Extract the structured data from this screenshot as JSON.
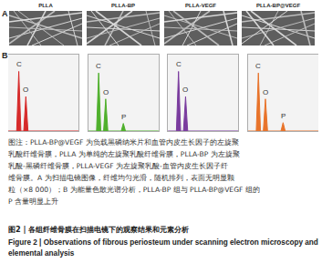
{
  "panel_a": {
    "label": "A",
    "images": [
      "PLLA",
      "PLLA-BP",
      "PLLA-VEGF",
      "PLLA-BP@VEGF"
    ]
  },
  "panel_b": {
    "label": "B"
  },
  "chart_data": [
    {
      "type": "line",
      "x": [
        0,
        1.2,
        1.5,
        1.8,
        2.2,
        2.5,
        2.8,
        4.7,
        5,
        5.3,
        10
      ],
      "series": [
        {
          "color": "#d62a2a",
          "values": [
            0,
            0,
            78,
            0,
            0,
            45,
            0,
            0,
            0,
            0,
            0
          ]
        }
      ],
      "xlim": [
        0,
        10
      ],
      "ylim": [
        0,
        100
      ],
      "tick_labels": false,
      "annotations": [
        {
          "text": "C",
          "x": 1.5,
          "y": 78
        },
        {
          "text": "O",
          "x": 2.5,
          "y": 45
        }
      ]
    },
    {
      "type": "line",
      "x": [
        0,
        1.2,
        1.5,
        1.8,
        2.2,
        2.5,
        2.8,
        4.7,
        5,
        5.3,
        10
      ],
      "series": [
        {
          "color": "#4fb02c",
          "values": [
            0,
            0,
            76,
            0,
            0,
            42,
            0,
            0,
            10,
            0,
            0
          ]
        }
      ],
      "xlim": [
        0,
        10
      ],
      "ylim": [
        0,
        100
      ],
      "tick_labels": false,
      "annotations": [
        {
          "text": "C",
          "x": 1.5,
          "y": 76
        },
        {
          "text": "O",
          "x": 2.5,
          "y": 42
        },
        {
          "text": "P",
          "x": 5,
          "y": 10
        }
      ]
    },
    {
      "type": "line",
      "x": [
        0,
        1.2,
        1.5,
        1.8,
        2.2,
        2.5,
        2.8,
        4.7,
        5,
        5.3,
        10
      ],
      "series": [
        {
          "color": "#7a3c9e",
          "values": [
            0,
            0,
            78,
            0,
            0,
            45,
            0,
            0,
            0,
            0,
            0
          ]
        }
      ],
      "xlim": [
        0,
        10
      ],
      "ylim": [
        0,
        100
      ],
      "tick_labels": false,
      "annotations": [
        {
          "text": "C",
          "x": 1.5,
          "y": 78
        },
        {
          "text": "O",
          "x": 2.5,
          "y": 45
        }
      ]
    },
    {
      "type": "line",
      "x": [
        0,
        1.2,
        1.5,
        1.8,
        2.2,
        2.5,
        2.8,
        4.7,
        5,
        5.3,
        10
      ],
      "series": [
        {
          "color": "#e8732a",
          "values": [
            0,
            0,
            76,
            0,
            0,
            42,
            0,
            0,
            11,
            0,
            0
          ]
        }
      ],
      "xlim": [
        0,
        10
      ],
      "ylim": [
        0,
        100
      ],
      "tick_labels": false,
      "annotations": [
        {
          "text": "C",
          "x": 1.5,
          "y": 76
        },
        {
          "text": "O",
          "x": 2.5,
          "y": 42
        },
        {
          "text": "P",
          "x": 5,
          "y": 11
        }
      ]
    }
  ],
  "caption_lines": [
    "图注：PLLA-BP@VEGF 为负载黑磷纳米片和血管内皮生长因子的左旋聚",
    "乳酸纤维骨膜，PLLA 为单纯的左旋聚乳酸纤维骨膜，PLLA-BP 为左旋聚",
    "乳酸-黑磷纤维骨膜，PLLA-VEGF 为左旋聚乳酸-血管内皮生长因子纤",
    "维骨膜。A 为扫描电镜图像，纤维均匀光滑，随机排列，表面无明显颗",
    "粒（×8 000）；B 为能量色散光谱分析，PLLA-BP 组与 PLLA-BP@VEGF 组的",
    "P 含量明显上升"
  ],
  "title_zh": "图2 | 各组纤维骨膜在扫描电镜下的观察结果和元素分析",
  "title_en": "Figure 2 | Observations of fibrous periosteum under scanning electron microscopy and elemental analysis"
}
